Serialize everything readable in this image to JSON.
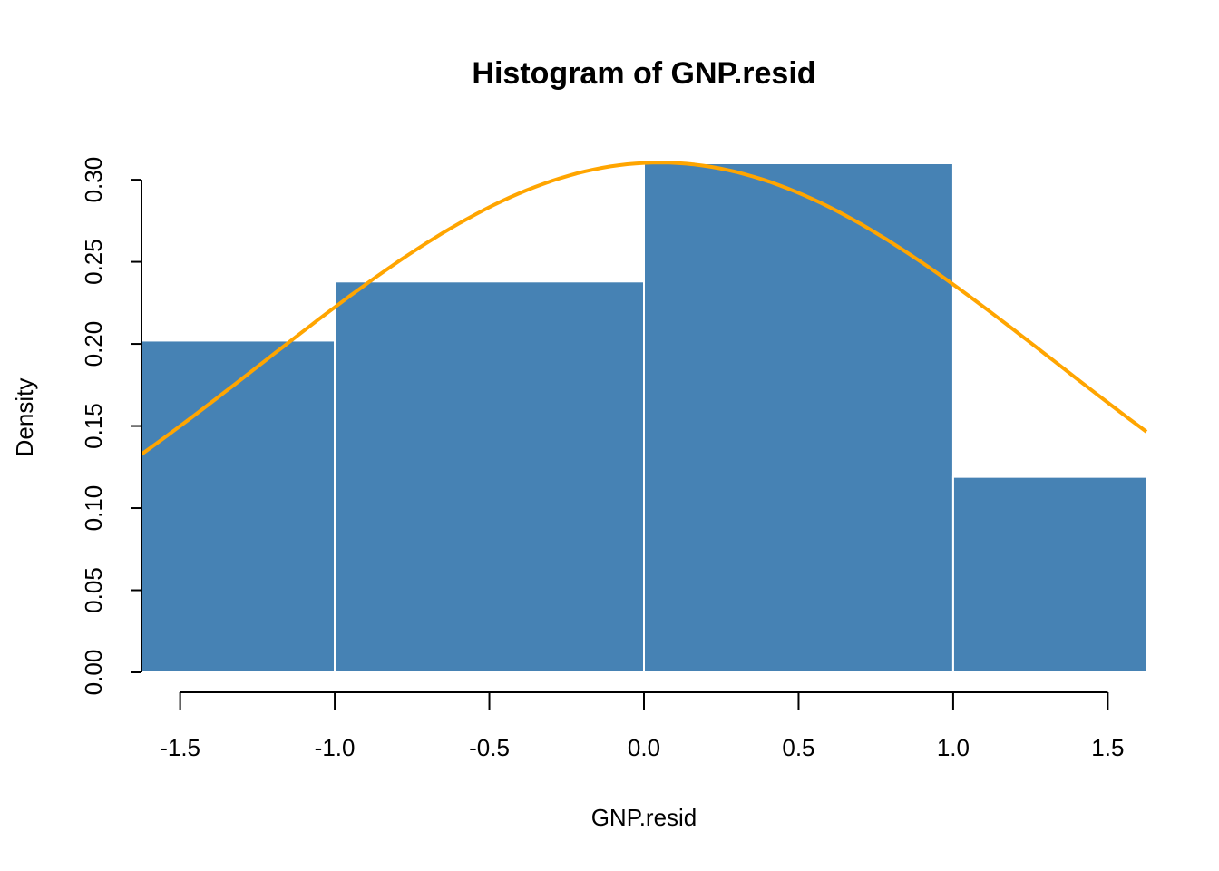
{
  "chart_data": {
    "type": "bar",
    "title": "Histogram of GNP.resid",
    "xlabel": "GNP.resid",
    "ylabel": "Density",
    "xlim": [
      -1.625,
      1.625
    ],
    "ylim": [
      0,
      0.31
    ],
    "x_ticks": [
      "-1.5",
      "-1.0",
      "-0.5",
      "0.0",
      "0.5",
      "1.0",
      "1.5"
    ],
    "y_ticks": [
      "0.00",
      "0.05",
      "0.10",
      "0.15",
      "0.20",
      "0.25",
      "0.30"
    ],
    "bins": [
      {
        "from": -1.625,
        "to": -1.0,
        "density": 0.202
      },
      {
        "from": -1.0,
        "to": 0.0,
        "density": 0.238
      },
      {
        "from": 0.0,
        "to": 1.0,
        "density": 0.31
      },
      {
        "from": 1.0,
        "to": 1.625,
        "density": 0.119
      }
    ],
    "density_curve": {
      "type": "line",
      "mean": 0.05,
      "sd": 1.285,
      "color": "#FFA500"
    },
    "bar_color": "#4682B4",
    "bar_border": "#FFFFFF",
    "grid": false,
    "legend": "none"
  }
}
